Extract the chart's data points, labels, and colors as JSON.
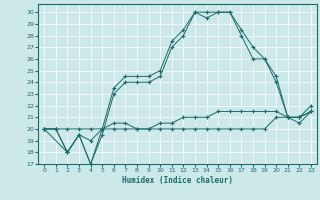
{
  "xlabel": "Humidex (Indice chaleur)",
  "bg_color": "#cce8e8",
  "line_color": "#1a6b6b",
  "grid_color": "#ffffff",
  "xlim": [
    -0.5,
    23.5
  ],
  "ylim": [
    17,
    30.7
  ],
  "yticks": [
    17,
    18,
    19,
    20,
    21,
    22,
    23,
    24,
    25,
    26,
    27,
    28,
    29,
    30
  ],
  "xticks": [
    0,
    1,
    2,
    3,
    4,
    5,
    6,
    7,
    8,
    9,
    10,
    11,
    12,
    13,
    14,
    15,
    16,
    17,
    18,
    19,
    20,
    21,
    22,
    23
  ],
  "line1_x": [
    0,
    1,
    2,
    3,
    4,
    5,
    6,
    7,
    8,
    9,
    10,
    11,
    12,
    13,
    14,
    15,
    16,
    17,
    18,
    19,
    20,
    21,
    22,
    23
  ],
  "line1_y": [
    20,
    20,
    20,
    20,
    20,
    20,
    20,
    20,
    20,
    20,
    20,
    20,
    20,
    20,
    20,
    20,
    20,
    20,
    20,
    20,
    21,
    21,
    21,
    21.5
  ],
  "line2_x": [
    0,
    1,
    2,
    3,
    4,
    5,
    6,
    7,
    8,
    9,
    10,
    11,
    12,
    13,
    14,
    15,
    16,
    17,
    18,
    19,
    20,
    21,
    22,
    23
  ],
  "line2_y": [
    20,
    20,
    18,
    19.5,
    19,
    20,
    20.5,
    20.5,
    20,
    20,
    20.5,
    20.5,
    21,
    21,
    21,
    21.5,
    21.5,
    21.5,
    21.5,
    21.5,
    21.5,
    21,
    21,
    22
  ],
  "line3_x": [
    0,
    1,
    2,
    3,
    4,
    5,
    6,
    7,
    8,
    9,
    10,
    11,
    12,
    13,
    14,
    15,
    16,
    17,
    18,
    19,
    20,
    21,
    22,
    23
  ],
  "line3_y": [
    20,
    20,
    18,
    19.5,
    17,
    19.5,
    23,
    24,
    24,
    24,
    24.5,
    27,
    28,
    30,
    29.5,
    30,
    30,
    28.5,
    27,
    26,
    24,
    21,
    20.5,
    21.5
  ],
  "line4_x": [
    0,
    2,
    3,
    4,
    5,
    6,
    7,
    8,
    9,
    10,
    11,
    12,
    13,
    14,
    15,
    16,
    17,
    18,
    19,
    20,
    21,
    22,
    23
  ],
  "line4_y": [
    20,
    18,
    19.5,
    17,
    20,
    23.5,
    24.5,
    24.5,
    24.5,
    25,
    27.5,
    28.5,
    30,
    30,
    30,
    30,
    28,
    26,
    26,
    24.5,
    21,
    21,
    21.5
  ]
}
